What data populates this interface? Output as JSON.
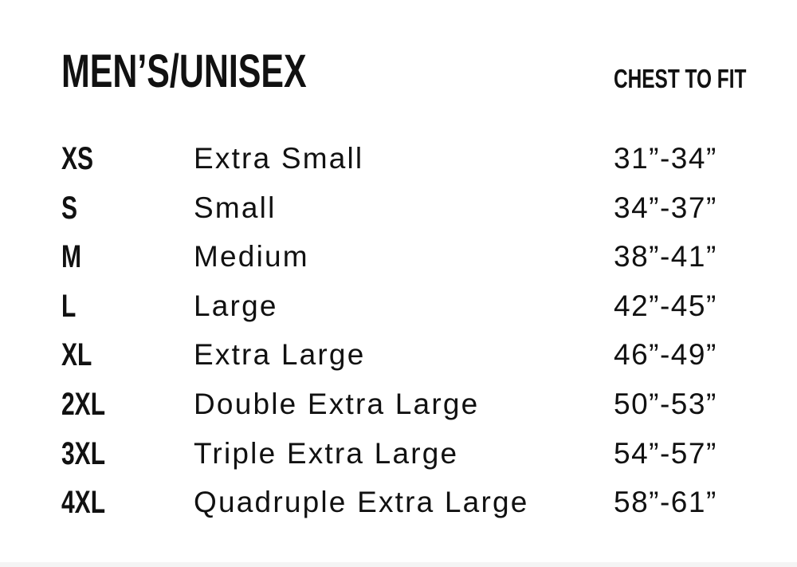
{
  "title": "MEN’S/UNISEX",
  "column_header": "CHEST TO FIT",
  "rows": [
    {
      "size": "XS",
      "name": "Extra Small",
      "chest": "31”-34”"
    },
    {
      "size": "S",
      "name": "Small",
      "chest": "34”-37”"
    },
    {
      "size": "M",
      "name": "Medium",
      "chest": "38”-41”"
    },
    {
      "size": "L",
      "name": "Large",
      "chest": "42”-45”"
    },
    {
      "size": "XL",
      "name": "Extra Large",
      "chest": "46”-49”"
    },
    {
      "size": "2XL",
      "name": "Double Extra Large",
      "chest": "50”-53”"
    },
    {
      "size": "3XL",
      "name": "Triple Extra Large",
      "chest": "54”-57”"
    },
    {
      "size": "4XL",
      "name": "Quadruple Extra Large",
      "chest": "58”-61”"
    }
  ]
}
